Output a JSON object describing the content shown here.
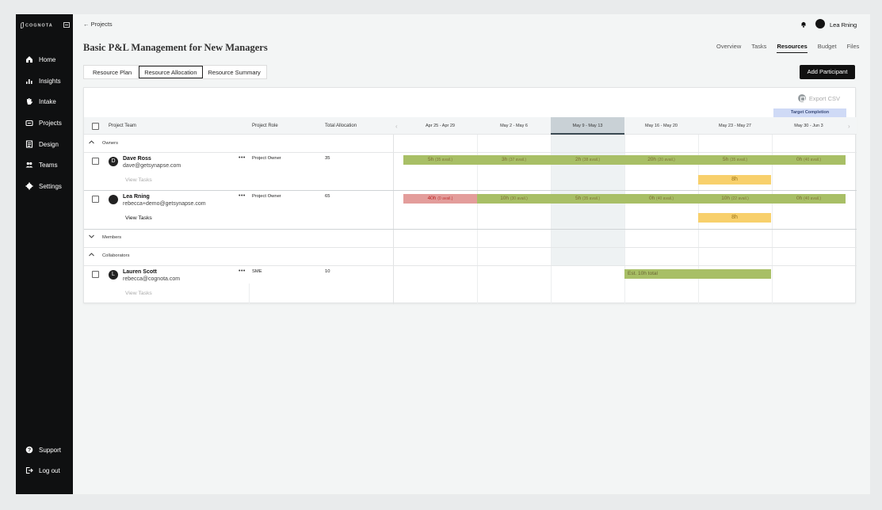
{
  "sidebar": {
    "logo_text": "COGNOTA",
    "items": [
      {
        "label": "Home",
        "icon": "home-icon"
      },
      {
        "label": "Insights",
        "icon": "chart-icon"
      },
      {
        "label": "Intake",
        "icon": "hand-icon"
      },
      {
        "label": "Projects",
        "icon": "folder-icon"
      },
      {
        "label": "Design",
        "icon": "document-icon"
      },
      {
        "label": "Teams",
        "icon": "people-icon"
      },
      {
        "label": "Settings",
        "icon": "gear-icon"
      }
    ],
    "bottom": [
      {
        "label": "Support",
        "icon": "help-icon"
      },
      {
        "label": "Log out",
        "icon": "logout-icon"
      }
    ]
  },
  "topbar": {
    "back_label": "← Projects",
    "user_name": "Lea Rning"
  },
  "page": {
    "title": "Basic P&L Management for New Managers",
    "tabs": [
      "Overview",
      "Tasks",
      "Resources",
      "Budget",
      "Files"
    ],
    "active_tab": "Resources"
  },
  "subtabs": [
    "Resource Plan",
    "Resource Allocation",
    "Resource Summary"
  ],
  "active_subtab": "Resource Allocation",
  "add_participant_label": "Add Participant",
  "export_label": "Export CSV",
  "target_label": "Target Completion",
  "table": {
    "headers": {
      "team": "Project Team",
      "role": "Project Role",
      "allocation": "Total Allocation"
    },
    "weeks": [
      "Apr 25 - Apr 29",
      "May 2 - May 6",
      "May 9 - May 13",
      "May 16 - May 20",
      "May 23 - May 27",
      "May 30 - Jun 3"
    ],
    "selected_week": "May 9 - May 13",
    "groups": {
      "owners": "Owners",
      "members": "Members",
      "collaborators": "Collaborators"
    },
    "people": [
      {
        "initial": "D",
        "name": "Dave Ross",
        "email": "dave@getsynapse.com",
        "role": "Project Owner",
        "allocation": "35",
        "view_tasks": "View Tasks",
        "hours": [
          {
            "h": "5h",
            "avail": "(35 avail.)"
          },
          {
            "h": "3h",
            "avail": "(37 avail.)"
          },
          {
            "h": "2h",
            "avail": "(38 avail.)"
          },
          {
            "h": "20h",
            "avail": "(20 avail.)"
          },
          {
            "h": "5h",
            "avail": "(35 avail.)"
          },
          {
            "h": "0h",
            "avail": "(40 avail.)"
          }
        ],
        "task_bar": "8h"
      },
      {
        "initial": "",
        "name": "Lea Rning",
        "email": "rebecca+demo@getsynapse.com",
        "role": "Project Owner",
        "allocation": "65",
        "view_tasks": "View Tasks",
        "hours": [
          {
            "h": "40h",
            "avail": "(0 avail.)"
          },
          {
            "h": "10h",
            "avail": "(30 avail.)"
          },
          {
            "h": "5h",
            "avail": "(35 avail.)"
          },
          {
            "h": "0h",
            "avail": "(40 avail.)"
          },
          {
            "h": "10h",
            "avail": "(22 avail.)"
          },
          {
            "h": "0h",
            "avail": "(40 avail.)"
          }
        ],
        "task_bar": "8h"
      },
      {
        "initial": "L",
        "name": "Lauren Scott",
        "email": "rebecca@cognota.com",
        "role": "SME",
        "allocation": "10",
        "view_tasks": "View Tasks",
        "estimate": "Est. 10h total"
      }
    ]
  },
  "colors": {
    "green": "#a8bf66",
    "red": "#e39d9b",
    "yellow": "#f8d06c",
    "target": "#cfdaf6"
  }
}
